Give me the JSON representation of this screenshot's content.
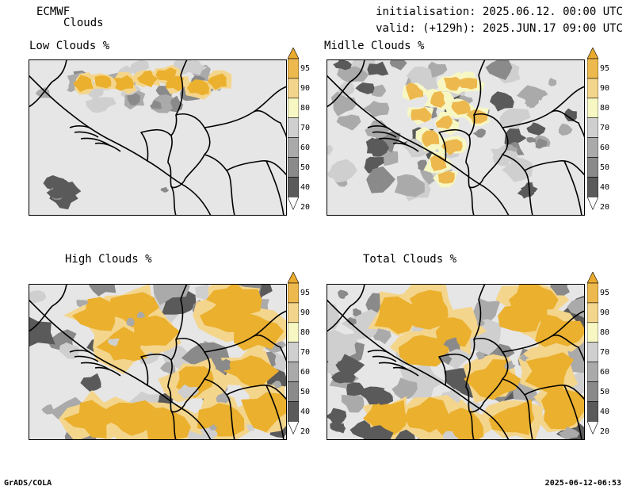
{
  "header": {
    "model": "ECMWF",
    "subtitle": "Clouds",
    "init_label": "initialisation: 2025.06.12. 00:00 UTC",
    "valid_label": "valid: (+129h): 2025.JUN.17 09:00 UTC"
  },
  "panels": [
    {
      "title": "Low Clouds %",
      "cover": "low"
    },
    {
      "title": "Midlle Clouds %",
      "cover": "mid"
    },
    {
      "title": "High Clouds %",
      "cover": "high"
    },
    {
      "title": "Total Clouds %",
      "cover": "total"
    }
  ],
  "colorbar": {
    "levels": [
      "20",
      "40",
      "50",
      "60",
      "70",
      "80",
      "90",
      "95"
    ],
    "colors": [
      "#ffffff",
      "#5a5a5a",
      "#8a8a8a",
      "#aaaaaa",
      "#cfcfcf",
      "#f7f7c4",
      "#f4d58c",
      "#edb84d",
      "#eaaa2e"
    ]
  },
  "footer": {
    "left": "GrADS/COLA",
    "right": "2025-06-12-06:53"
  }
}
